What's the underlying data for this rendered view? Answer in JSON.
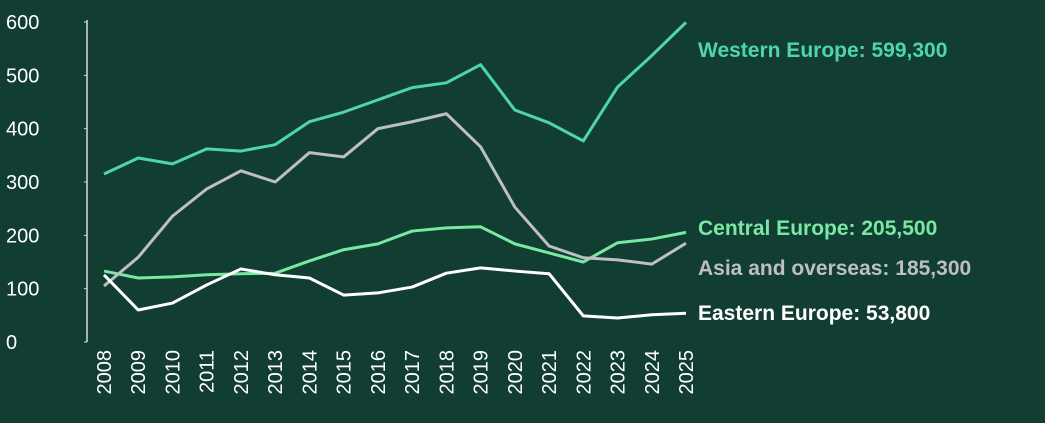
{
  "chart_data": {
    "type": "line",
    "x": [
      "2008",
      "2009",
      "2010",
      "2011",
      "2012",
      "2013",
      "2014",
      "2015",
      "2016",
      "2017",
      "2018",
      "2019",
      "2020",
      "2021",
      "2022",
      "2023",
      "2024",
      "2025"
    ],
    "ylim": [
      0,
      600
    ],
    "yticks": [
      0,
      100,
      200,
      300,
      400,
      500,
      600
    ],
    "grid": false,
    "series": [
      {
        "label": "Western Europe: 599,300",
        "color": "#4fd6a8",
        "values": [
          315,
          345,
          334,
          362,
          358,
          370,
          413,
          431,
          454,
          477,
          486,
          520,
          435,
          411,
          377,
          478,
          537,
          599.3
        ]
      },
      {
        "label": "Central Europe: 205,500",
        "color": "#78e8a2",
        "values": [
          133,
          120,
          122,
          126,
          128,
          129,
          152,
          173,
          184,
          208,
          214,
          216,
          184,
          167,
          150,
          186,
          193,
          205.5
        ]
      },
      {
        "label": "Asia and overseas: 185,300",
        "color": "#bfbfbf",
        "values": [
          105,
          159,
          236,
          287,
          321,
          300,
          355,
          347,
          400,
          413,
          428,
          366,
          253,
          180,
          158,
          154,
          146,
          185.3
        ]
      },
      {
        "label": "Eastern Europe: 53,800",
        "color": "#ffffff",
        "values": [
          126,
          60,
          73,
          107,
          137,
          126,
          120,
          88,
          92,
          103,
          129,
          139,
          133,
          128,
          49,
          45,
          51,
          53.8
        ]
      }
    ]
  }
}
